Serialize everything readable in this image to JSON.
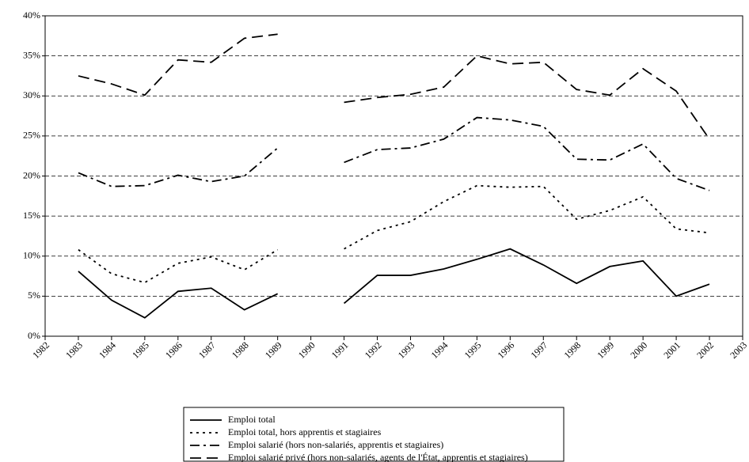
{
  "chart_data": {
    "type": "line",
    "x": [
      1983,
      1984,
      1985,
      1986,
      1987,
      1988,
      1989,
      1990,
      1991,
      1992,
      1993,
      1994,
      1995,
      1996,
      1997,
      1998,
      1999,
      2000,
      2001,
      2002
    ],
    "xlim": [
      1982,
      2003
    ],
    "xticks": [
      1982,
      1983,
      1984,
      1985,
      1986,
      1987,
      1988,
      1989,
      1990,
      1991,
      1992,
      1993,
      1994,
      1995,
      1996,
      1997,
      1998,
      1999,
      2000,
      2001,
      2002,
      2003
    ],
    "ylim": [
      0,
      40
    ],
    "yticks": [
      {
        "value": 0,
        "label": "0%"
      },
      {
        "value": 5,
        "label": "5%"
      },
      {
        "value": 10,
        "label": "10%"
      },
      {
        "value": 15,
        "label": "15%"
      },
      {
        "value": 20,
        "label": "20%"
      },
      {
        "value": 25,
        "label": "25%"
      },
      {
        "value": 30,
        "label": "30%"
      },
      {
        "value": 35,
        "label": "35%"
      },
      {
        "value": 40,
        "label": "40%"
      }
    ],
    "grid": true,
    "legend": "bottom",
    "series": [
      {
        "name": "Emploi total",
        "color": "#000000",
        "dash": "none",
        "values": [
          8.1,
          4.5,
          2.3,
          5.6,
          6.0,
          3.3,
          5.3,
          null,
          4.1,
          7.6,
          7.6,
          8.4,
          9.6,
          10.9,
          8.9,
          6.6,
          8.7,
          9.4,
          5.0,
          6.5
        ]
      },
      {
        "name": "Emploi total, hors apprentis et stagiaires",
        "color": "#000000",
        "dash": "3,5",
        "values": [
          10.8,
          7.8,
          6.7,
          9.1,
          9.9,
          8.3,
          10.8,
          null,
          10.9,
          13.2,
          14.3,
          16.8,
          18.8,
          18.6,
          18.7,
          14.6,
          15.7,
          17.4,
          13.4,
          12.9
        ]
      },
      {
        "name": "Emploi salarié (hors non-salariés, apprentis et stagiaires)",
        "color": "#000000",
        "dash": "12,5,3,5",
        "values": [
          20.4,
          18.7,
          18.8,
          20.1,
          19.3,
          20.0,
          23.5,
          null,
          21.7,
          23.3,
          23.5,
          24.6,
          27.3,
          27.0,
          26.2,
          22.1,
          22.0,
          24.0,
          19.7,
          18.2
        ]
      },
      {
        "name": "Emploi salarié privé (hors non-salariés, agents de l'État, apprentis et stagiaires)",
        "color": "#000000",
        "dash": "14,7",
        "values": [
          32.5,
          31.5,
          30.1,
          34.5,
          34.2,
          37.2,
          37.7,
          null,
          29.2,
          29.8,
          30.2,
          31.1,
          35.0,
          34.0,
          34.2,
          30.8,
          30.1,
          33.4,
          30.6,
          24.6
        ]
      }
    ]
  }
}
